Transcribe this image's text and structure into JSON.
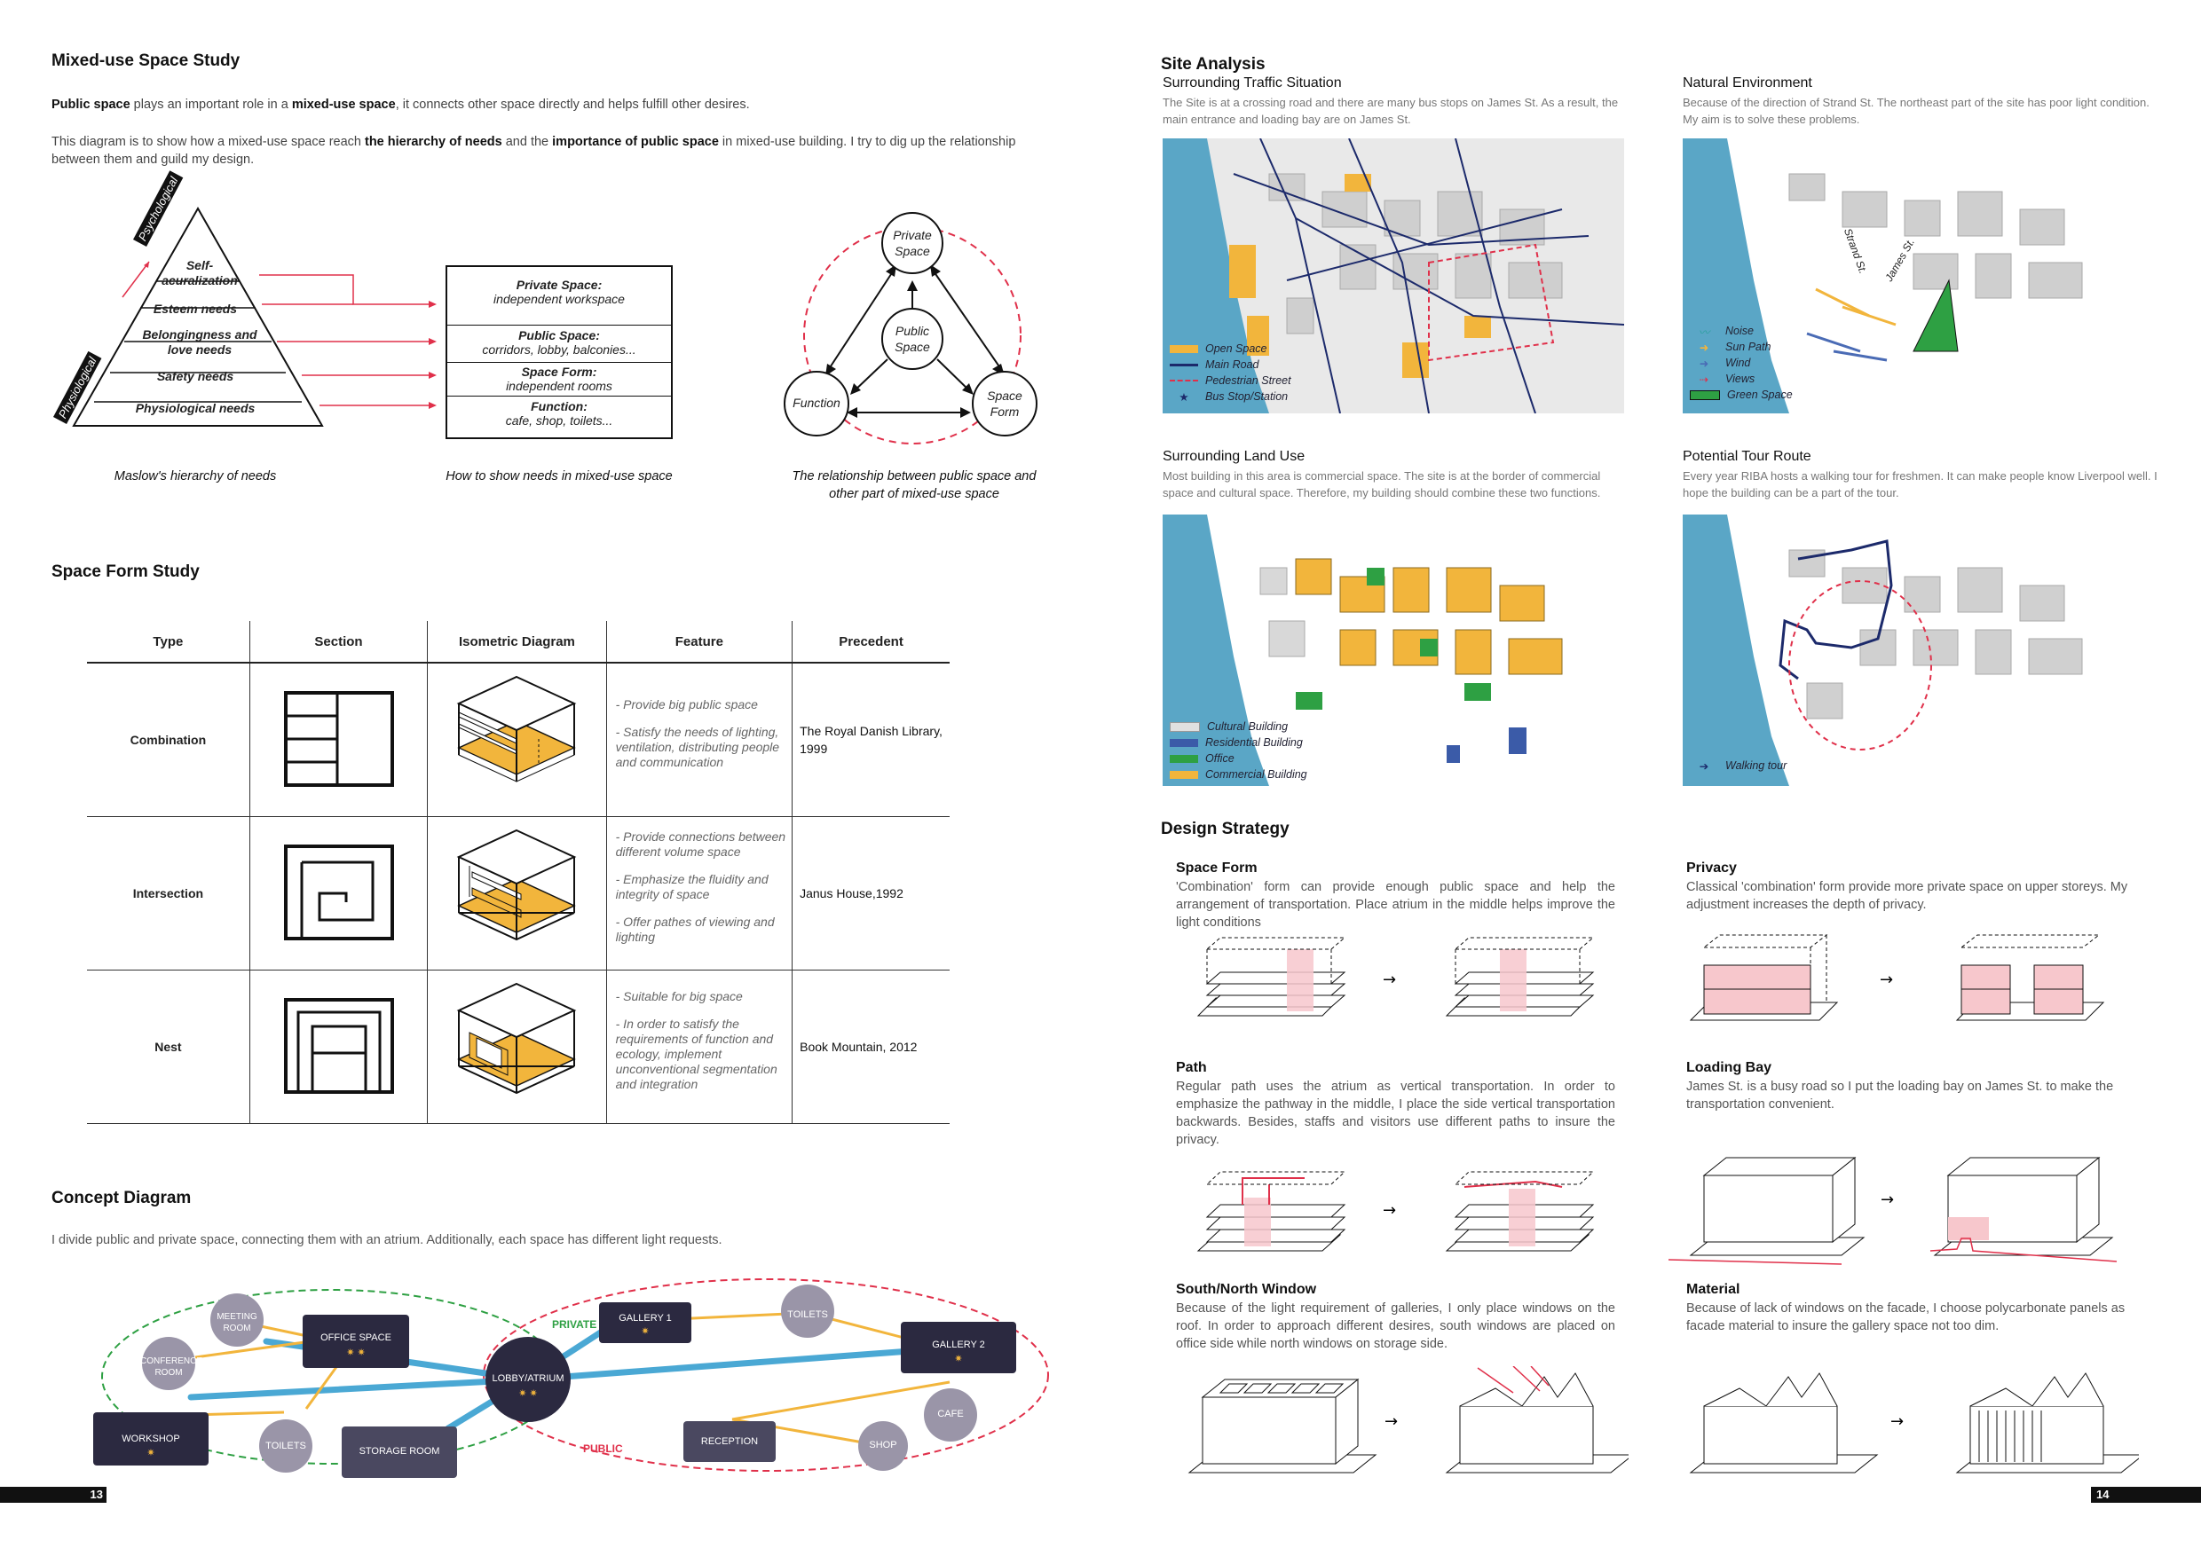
{
  "left": {
    "mixed": {
      "title": "Mixed-use Space Study",
      "p1_a": "Public space",
      "p1_b": " plays an important role in a ",
      "p1_c": "mixed-use space",
      "p1_d": ", it connects other space directly and helps fulfill other desires.",
      "p2_a": "This diagram is to show how a mixed-use space reach ",
      "p2_b": "the hierarchy of needs",
      "p2_c": " and the ",
      "p2_d": "importance of public space",
      "p2_e": " in mixed-use building. I try to dig up the relationship between them and guild my design.",
      "pyramid": {
        "psych": "Psychological",
        "physio": "Physiological",
        "levels": [
          "Self-acuralization",
          "Esteem needs",
          "Belongingness and love needs",
          "Safety needs",
          "Physiological needs"
        ]
      },
      "needs_box": [
        {
          "h": "Private Space:",
          "t": "independent workspace"
        },
        {
          "h": "Public Space:",
          "t": "corridors, lobby, balconies..."
        },
        {
          "h": "Space Form:",
          "t": "independent rooms"
        },
        {
          "h": "Function:",
          "t": "cafe, shop, toilets..."
        }
      ],
      "circles": {
        "private": "Private Space",
        "public": "Public Space",
        "function": "Function",
        "form": "Space Form"
      },
      "cap1": "Maslow's hierarchy of needs",
      "cap2": "How to show needs in mixed-use space",
      "cap3": "The relationship between public space and other part of mixed-use space"
    },
    "spaceform": {
      "title": "Space Form Study",
      "headers": [
        "Type",
        "Section",
        "Isometric Diagram",
        "Feature",
        "Precedent"
      ],
      "rows": [
        {
          "type": "Combination",
          "features": [
            "- Provide big public space",
            "- Satisfy the needs of lighting, ventilation, distributing people and communication"
          ],
          "precedent": "The Royal Danish Library, 1999"
        },
        {
          "type": "Intersection",
          "features": [
            "- Provide connections between different volume space",
            "- Emphasize the fluidity and integrity of space",
            "- Offer pathes of viewing and lighting"
          ],
          "precedent": "Janus House,1992"
        },
        {
          "type": "Nest",
          "features": [
            "- Suitable for big space",
            "- In order to satisfy the requirements of function and ecology, implement unconventional segmentation and integration"
          ],
          "precedent": "Book Mountain, 2012"
        }
      ]
    },
    "concept": {
      "title": "Concept Diagram",
      "text": "I divide public and private space, connecting them with an atrium. Additionally, each space has different light requests.",
      "private_label": "PRIVATE",
      "public_label": "PUBLIC",
      "nodes": {
        "meeting": "MEETING ROOM",
        "conference": "CONFERENCE ROOM",
        "office": "OFFICE SPACE",
        "workshop": "WORKSHOP",
        "toilets1": "TOILETS",
        "storage": "STORAGE ROOM",
        "lobby": "LOBBY/ATRIUM",
        "gallery1": "GALLERY 1",
        "toilets2": "TOILETS",
        "gallery2": "GALLERY 2",
        "cafe": "CAFE",
        "shop": "SHOP",
        "reception": "RECEPTION"
      },
      "stars_one": "✷",
      "stars_two": "✷ ✷"
    },
    "page": "13"
  },
  "right": {
    "site": {
      "title": "Site Analysis",
      "traffic": {
        "title": "Surrounding Traffic Situation",
        "text": "The Site is at a crossing road and there are many bus stops on James St. As a result, the main entrance and loading bay are on James St.",
        "legend": [
          "Open Space",
          "Main Road",
          "Pedestrian Street",
          "Bus Stop/Station"
        ]
      },
      "natural": {
        "title": "Natural Environment",
        "text": "Because of the direction of Strand St. The northeast part of the site has poor light condition. My aim is to solve these problems.",
        "legend": [
          "Noise",
          "Sun Path",
          "Wind",
          "Views",
          "Green Space"
        ],
        "street1": "Strand St.",
        "street2": "James St."
      },
      "landuse": {
        "title": "Surrounding Land Use",
        "text": "Most building in this area is commercial space. The site is at the border of commercial space and cultural space. Therefore, my building should combine these two functions.",
        "legend": [
          "Cultural Building",
          "Residential Building",
          "Office",
          "Commercial Building"
        ]
      },
      "tour": {
        "title": "Potential Tour Route",
        "text": "Every year RIBA hosts a walking tour for freshmen. It can make people know Liverpool well. I hope the building can be a part of the tour.",
        "legend": [
          "Walking tour"
        ]
      }
    },
    "strategy": {
      "title": "Design Strategy",
      "items": [
        {
          "title": "Space Form",
          "text": "'Combination' form can provide enough public space and help the arrangement of transportation. Place atrium in the middle helps improve the light conditions"
        },
        {
          "title": "Privacy",
          "text": "Classical 'combination' form provide more private space on upper storeys. My adjustment increases the depth of privacy."
        },
        {
          "title": "Path",
          "text": "Regular path uses the atrium as vertical transportation. In order to emphasize the pathway in the middle, I place the side vertical transportation backwards. Besides, staffs and visitors use different paths to insure the privacy."
        },
        {
          "title": "Loading Bay",
          "text": "James St. is a busy road so I put the loading bay on James St. to make the transportation convenient."
        },
        {
          "title": "South/North Window",
          "text": "Because of the light requirement of galleries, I only place windows on the roof. In order to approach different desires, south windows are placed on office side while north windows on storage side."
        },
        {
          "title": "Material",
          "text": "Because of lack of windows on the facade, I choose polycarbonate panels as facade material to insure the gallery space not too dim."
        }
      ]
    },
    "page": "14"
  },
  "colors": {
    "accent_red": "#e0304a",
    "water": "#5aa6c6",
    "yellow": "#f2b53c",
    "green": "#2ea043",
    "navy": "#1c2a6b",
    "node_dark": "#3d3b57"
  }
}
